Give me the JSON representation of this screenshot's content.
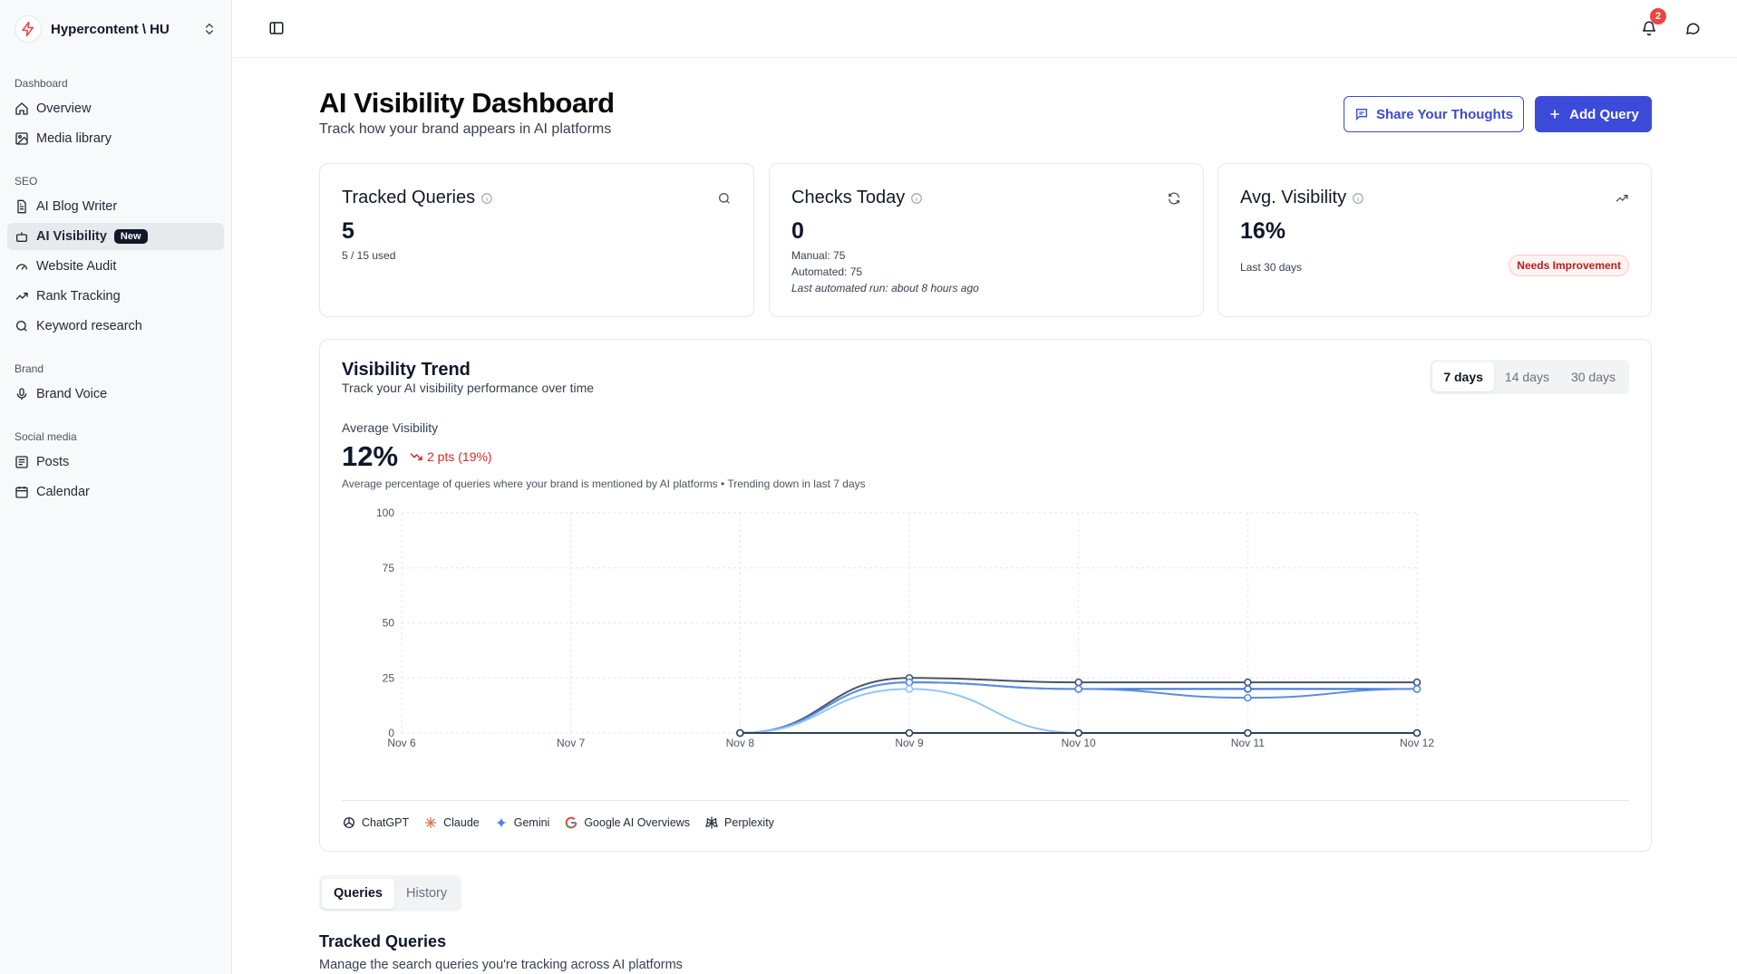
{
  "workspace": {
    "name": "Hypercontent \\ HU"
  },
  "sidebar": {
    "sections": [
      {
        "label": "Dashboard",
        "items": [
          {
            "label": "Overview",
            "icon": "home-icon"
          },
          {
            "label": "Media library",
            "icon": "image-icon"
          }
        ]
      },
      {
        "label": "SEO",
        "items": [
          {
            "label": "AI Blog Writer",
            "icon": "file-icon"
          },
          {
            "label": "AI Visibility",
            "icon": "robot-icon",
            "badge": "New",
            "active": true
          },
          {
            "label": "Website Audit",
            "icon": "gauge-icon"
          },
          {
            "label": "Rank Tracking",
            "icon": "trend-icon"
          },
          {
            "label": "Keyword research",
            "icon": "search-icon"
          }
        ]
      },
      {
        "label": "Brand",
        "items": [
          {
            "label": "Brand Voice",
            "icon": "mic-icon"
          }
        ]
      },
      {
        "label": "Social media",
        "items": [
          {
            "label": "Posts",
            "icon": "post-icon"
          },
          {
            "label": "Calendar",
            "icon": "calendar-icon"
          }
        ]
      }
    ]
  },
  "topbar": {
    "notifications_count": "2"
  },
  "header": {
    "title": "AI Visibility Dashboard",
    "subtitle": "Track how your brand appears in AI platforms",
    "share_label": "Share Your Thoughts",
    "add_label": "Add Query"
  },
  "stats": {
    "tracked": {
      "title": "Tracked Queries",
      "value": "5",
      "detail": "5 / 15 used"
    },
    "checks": {
      "title": "Checks Today",
      "value": "0",
      "manual": "Manual: 75",
      "automated": "Automated: 75",
      "last_run": "Last automated run: about 8 hours ago"
    },
    "avg": {
      "title": "Avg. Visibility",
      "value": "16%",
      "detail": "Last 30 days",
      "status": "Needs Improvement"
    }
  },
  "trend": {
    "title": "Visibility Trend",
    "subtitle": "Track your AI visibility performance over time",
    "ranges": [
      "7 days",
      "14 days",
      "30 days"
    ],
    "active_range": "7 days",
    "avg_label": "Average Visibility",
    "avg_value": "12%",
    "change": "2 pts (19%)",
    "description": "Average percentage of queries where your brand is mentioned by AI platforms • Trending down in last 7 days"
  },
  "chart_data": {
    "type": "line",
    "x": [
      "Nov 6",
      "Nov 7",
      "Nov 8",
      "Nov 9",
      "Nov 10",
      "Nov 11",
      "Nov 12"
    ],
    "y_ticks": [
      0,
      25,
      50,
      75,
      100
    ],
    "ylim": [
      0,
      100
    ],
    "grid": true,
    "series": [
      {
        "color": "#475569",
        "values": [
          null,
          null,
          0,
          25,
          23,
          23,
          23
        ]
      },
      {
        "color": "#3b6fd8",
        "values": [
          null,
          null,
          0,
          23,
          20,
          20,
          20
        ]
      },
      {
        "color": "#5b8fe0",
        "values": [
          null,
          null,
          0,
          23,
          20,
          16,
          20
        ]
      },
      {
        "color": "#93c5fd",
        "values": [
          null,
          null,
          0,
          20,
          0,
          0,
          0
        ]
      },
      {
        "color": "#334155",
        "values": [
          null,
          null,
          0,
          0,
          0,
          0,
          0
        ]
      }
    ],
    "legend": [
      "ChatGPT",
      "Claude",
      "Gemini",
      "Google AI Overviews",
      "Perplexity"
    ]
  },
  "tabs": [
    "Queries",
    "History"
  ],
  "active_tab": "Queries",
  "tracked_section": {
    "title": "Tracked Queries",
    "subtitle": "Manage the search queries you're tracking across AI platforms"
  }
}
